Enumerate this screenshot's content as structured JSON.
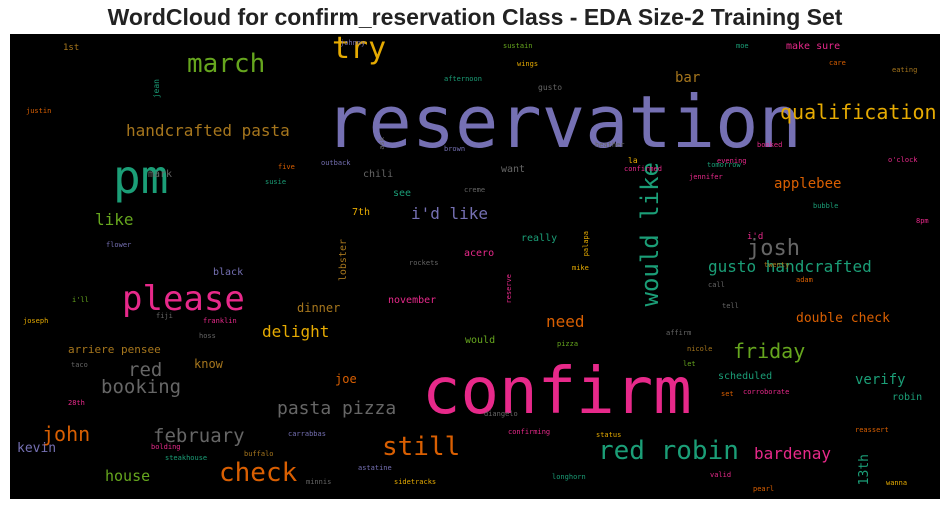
{
  "title": "WordCloud for confirm_reservation Class - EDA Size-2 Training Set",
  "colors": {
    "purple": "#7570b3",
    "pink": "#e7298a",
    "green": "#1b9e77",
    "orange": "#d95f02",
    "lime": "#66a61e",
    "gold": "#e6ab02",
    "brown": "#a6761d",
    "gray": "#666666"
  },
  "words": [
    {
      "text": "reservation",
      "color": "purple"
    },
    {
      "text": "confirm",
      "color": "pink"
    },
    {
      "text": "pm",
      "color": "green"
    },
    {
      "text": "please",
      "color": "pink"
    },
    {
      "text": "try",
      "color": "gold"
    },
    {
      "text": "march",
      "color": "lime"
    },
    {
      "text": "would like",
      "color": "green"
    },
    {
      "text": "red robin",
      "color": "green"
    },
    {
      "text": "check",
      "color": "orange"
    },
    {
      "text": "still",
      "color": "orange"
    },
    {
      "text": "qualification",
      "color": "gold"
    },
    {
      "text": "josh",
      "color": "gray"
    },
    {
      "text": "handcrafted pasta",
      "color": "brown"
    },
    {
      "text": "pasta pizza",
      "color": "gray"
    },
    {
      "text": "booking",
      "color": "gray"
    },
    {
      "text": "february",
      "color": "gray"
    },
    {
      "text": "john",
      "color": "orange"
    },
    {
      "text": "friday",
      "color": "lime"
    },
    {
      "text": "gusto handcrafted",
      "color": "green"
    },
    {
      "text": "bardenay",
      "color": "pink"
    },
    {
      "text": "applebee",
      "color": "orange"
    },
    {
      "text": "i'd like",
      "color": "purple"
    },
    {
      "text": "delight",
      "color": "gold"
    },
    {
      "text": "need",
      "color": "orange"
    },
    {
      "text": "red",
      "color": "gray"
    },
    {
      "text": "like",
      "color": "lime"
    },
    {
      "text": "house",
      "color": "lime"
    },
    {
      "text": "verify",
      "color": "green"
    },
    {
      "text": "bar",
      "color": "brown"
    },
    {
      "text": "double check",
      "color": "orange"
    },
    {
      "text": "13th",
      "color": "green"
    },
    {
      "text": "kevin",
      "color": "purple"
    },
    {
      "text": "dinner",
      "color": "brown"
    },
    {
      "text": "joe",
      "color": "orange"
    },
    {
      "text": "know",
      "color": "brown"
    },
    {
      "text": "arriere pensee",
      "color": "brown"
    },
    {
      "text": "november",
      "color": "pink"
    },
    {
      "text": "scheduled",
      "color": "green"
    },
    {
      "text": "robin",
      "color": "green"
    },
    {
      "text": "make sure",
      "color": "pink"
    },
    {
      "text": "chili",
      "color": "gray"
    },
    {
      "text": "want",
      "color": "gray"
    },
    {
      "text": "see",
      "color": "green"
    },
    {
      "text": "7th",
      "color": "gold"
    },
    {
      "text": "acero",
      "color": "pink"
    },
    {
      "text": "really",
      "color": "green"
    },
    {
      "text": "black",
      "color": "purple"
    },
    {
      "text": "mark",
      "color": "gray"
    },
    {
      "text": "lobster",
      "color": "brown"
    },
    {
      "text": "would",
      "color": "lime"
    },
    {
      "text": "i'd",
      "color": "pink"
    },
    {
      "text": "1st",
      "color": "brown"
    },
    {
      "text": "jean",
      "color": "green"
    },
    {
      "text": "justin",
      "color": "orange"
    },
    {
      "text": "johnny",
      "color": "purple"
    },
    {
      "text": "wings",
      "color": "gold"
    },
    {
      "text": "sustain",
      "color": "lime"
    },
    {
      "text": "moe",
      "color": "green"
    },
    {
      "text": "care",
      "color": "orange"
    },
    {
      "text": "eating",
      "color": "brown"
    },
    {
      "text": "afternoon",
      "color": "green"
    },
    {
      "text": "gusto",
      "color": "gray"
    },
    {
      "text": "ask",
      "color": "gray"
    },
    {
      "text": "brown",
      "color": "purple"
    },
    {
      "text": "heather",
      "color": "gray"
    },
    {
      "text": "confirmed",
      "color": "pink"
    },
    {
      "text": "booked",
      "color": "pink"
    },
    {
      "text": "o'clock",
      "color": "pink"
    },
    {
      "text": "five",
      "color": "orange"
    },
    {
      "text": "outback",
      "color": "purple"
    },
    {
      "text": "susie",
      "color": "green"
    },
    {
      "text": "creme",
      "color": "gray"
    },
    {
      "text": "la",
      "color": "gold"
    },
    {
      "text": "jennifer",
      "color": "pink"
    },
    {
      "text": "evening",
      "color": "pink"
    },
    {
      "text": "tomorrow",
      "color": "green"
    },
    {
      "text": "bubble",
      "color": "green"
    },
    {
      "text": "8pm",
      "color": "pink"
    },
    {
      "text": "twenty",
      "color": "brown"
    },
    {
      "text": "flower",
      "color": "purple"
    },
    {
      "text": "palapa",
      "color": "gold"
    },
    {
      "text": "rockets",
      "color": "gray"
    },
    {
      "text": "mike",
      "color": "gold"
    },
    {
      "text": "call",
      "color": "gray"
    },
    {
      "text": "adam",
      "color": "orange"
    },
    {
      "text": "tell",
      "color": "gray"
    },
    {
      "text": "i'll",
      "color": "lime"
    },
    {
      "text": "joseph",
      "color": "gold"
    },
    {
      "text": "fiji",
      "color": "gray"
    },
    {
      "text": "franklin",
      "color": "pink"
    },
    {
      "text": "hoss",
      "color": "gray"
    },
    {
      "text": "reserve",
      "color": "pink"
    },
    {
      "text": "affirm",
      "color": "gray"
    },
    {
      "text": "pizza",
      "color": "lime"
    },
    {
      "text": "nicole",
      "color": "brown"
    },
    {
      "text": "let",
      "color": "lime"
    },
    {
      "text": "taco",
      "color": "gray"
    },
    {
      "text": "28th",
      "color": "pink"
    },
    {
      "text": "diangelo",
      "color": "gray"
    },
    {
      "text": "set",
      "color": "orange"
    },
    {
      "text": "corroborate",
      "color": "pink"
    },
    {
      "text": "buffalo",
      "color": "brown"
    },
    {
      "text": "carrabbas",
      "color": "purple"
    },
    {
      "text": "confirming",
      "color": "pink"
    },
    {
      "text": "status",
      "color": "gold"
    },
    {
      "text": "reassert",
      "color": "orange"
    },
    {
      "text": "bolding",
      "color": "pink"
    },
    {
      "text": "steakhouse",
      "color": "green"
    },
    {
      "text": "longhorn",
      "color": "green"
    },
    {
      "text": "astatine",
      "color": "purple"
    },
    {
      "text": "valid",
      "color": "pink"
    },
    {
      "text": "minnis",
      "color": "gray"
    },
    {
      "text": "sidetracks",
      "color": "gold"
    },
    {
      "text": "pearl",
      "color": "orange"
    },
    {
      "text": "wanna",
      "color": "gold"
    }
  ]
}
